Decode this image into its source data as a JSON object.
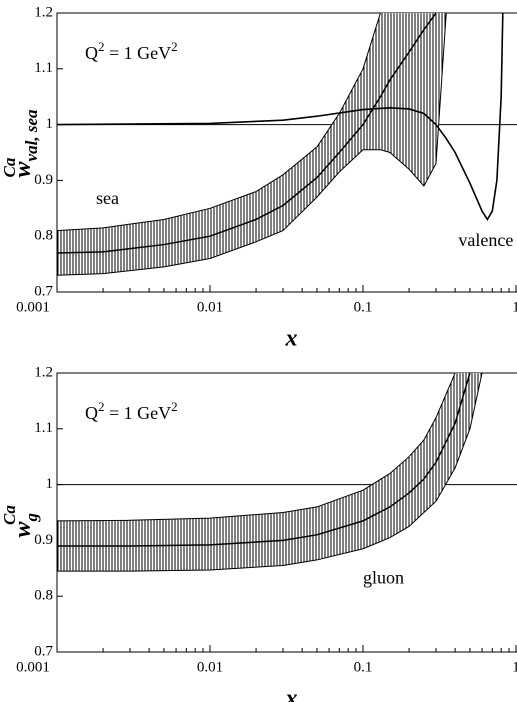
{
  "chart_data": [
    {
      "type": "line",
      "xlabel": "x",
      "ylabel": {
        "base": "w",
        "sub": "val, sea",
        "sup": "Ca"
      },
      "annotation": {
        "text": "Q",
        "sup": "2",
        "text2": " = 1 GeV",
        "sup2": "2"
      },
      "log_x": true,
      "xlim": [
        0.001,
        1
      ],
      "xticks": [
        0.001,
        0.01,
        0.1,
        1
      ],
      "ylim": [
        0.7,
        1.2
      ],
      "yticks": [
        0.7,
        0.8,
        0.9,
        1,
        1.1,
        1.2
      ],
      "hline": 1,
      "series": [
        {
          "name": "sea",
          "color": "#000000",
          "x": [
            0.001,
            0.002,
            0.005,
            0.01,
            0.02,
            0.03,
            0.05,
            0.07,
            0.1,
            0.13,
            0.15,
            0.2,
            0.25,
            0.3,
            0.35
          ],
          "values": [
            0.77,
            0.772,
            0.785,
            0.8,
            0.83,
            0.855,
            0.905,
            0.95,
            1.0,
            1.05,
            1.08,
            1.13,
            1.17,
            1.2,
            null
          ],
          "upper": [
            0.81,
            0.815,
            0.83,
            0.85,
            0.88,
            0.91,
            0.96,
            1.02,
            1.1,
            1.2,
            null,
            null,
            null,
            null,
            null
          ],
          "lower": [
            0.73,
            0.733,
            0.745,
            0.76,
            0.79,
            0.81,
            0.87,
            0.915,
            0.955,
            0.955,
            0.95,
            0.92,
            0.89,
            0.93,
            1.2
          ]
        },
        {
          "name": "valence",
          "color": "#000000",
          "x": [
            0.001,
            0.01,
            0.03,
            0.05,
            0.1,
            0.15,
            0.2,
            0.25,
            0.3,
            0.35,
            0.4,
            0.5,
            0.6,
            0.65,
            0.7,
            0.75,
            0.8,
            0.82
          ],
          "values": [
            1.0,
            1.002,
            1.008,
            1.015,
            1.027,
            1.03,
            1.028,
            1.02,
            1.0,
            0.975,
            0.95,
            0.895,
            0.845,
            0.83,
            0.845,
            0.9,
            1.05,
            1.2
          ]
        }
      ]
    },
    {
      "type": "line",
      "xlabel": "x",
      "ylabel": {
        "base": "w",
        "sub": "g",
        "sup": "Ca"
      },
      "annotation": {
        "text": "Q",
        "sup": "2",
        "text2": " = 1 GeV",
        "sup2": "2"
      },
      "log_x": true,
      "xlim": [
        0.001,
        1
      ],
      "xticks": [
        0.001,
        0.01,
        0.1,
        1
      ],
      "ylim": [
        0.7,
        1.2
      ],
      "yticks": [
        0.7,
        0.8,
        0.9,
        1,
        1.1,
        1.2
      ],
      "hline": 1,
      "series": [
        {
          "name": "gluon",
          "color": "#000000",
          "x": [
            0.001,
            0.003,
            0.01,
            0.03,
            0.05,
            0.1,
            0.15,
            0.2,
            0.25,
            0.3,
            0.4,
            0.5,
            0.6
          ],
          "values": [
            0.89,
            0.89,
            0.892,
            0.9,
            0.91,
            0.935,
            0.96,
            0.985,
            1.01,
            1.04,
            1.11,
            1.2,
            null
          ],
          "upper": [
            0.935,
            0.936,
            0.94,
            0.95,
            0.96,
            0.99,
            1.02,
            1.05,
            1.08,
            1.12,
            1.2,
            null,
            null
          ],
          "lower": [
            0.845,
            0.845,
            0.847,
            0.855,
            0.865,
            0.885,
            0.905,
            0.925,
            0.95,
            0.97,
            1.03,
            1.1,
            1.2
          ]
        }
      ]
    }
  ]
}
